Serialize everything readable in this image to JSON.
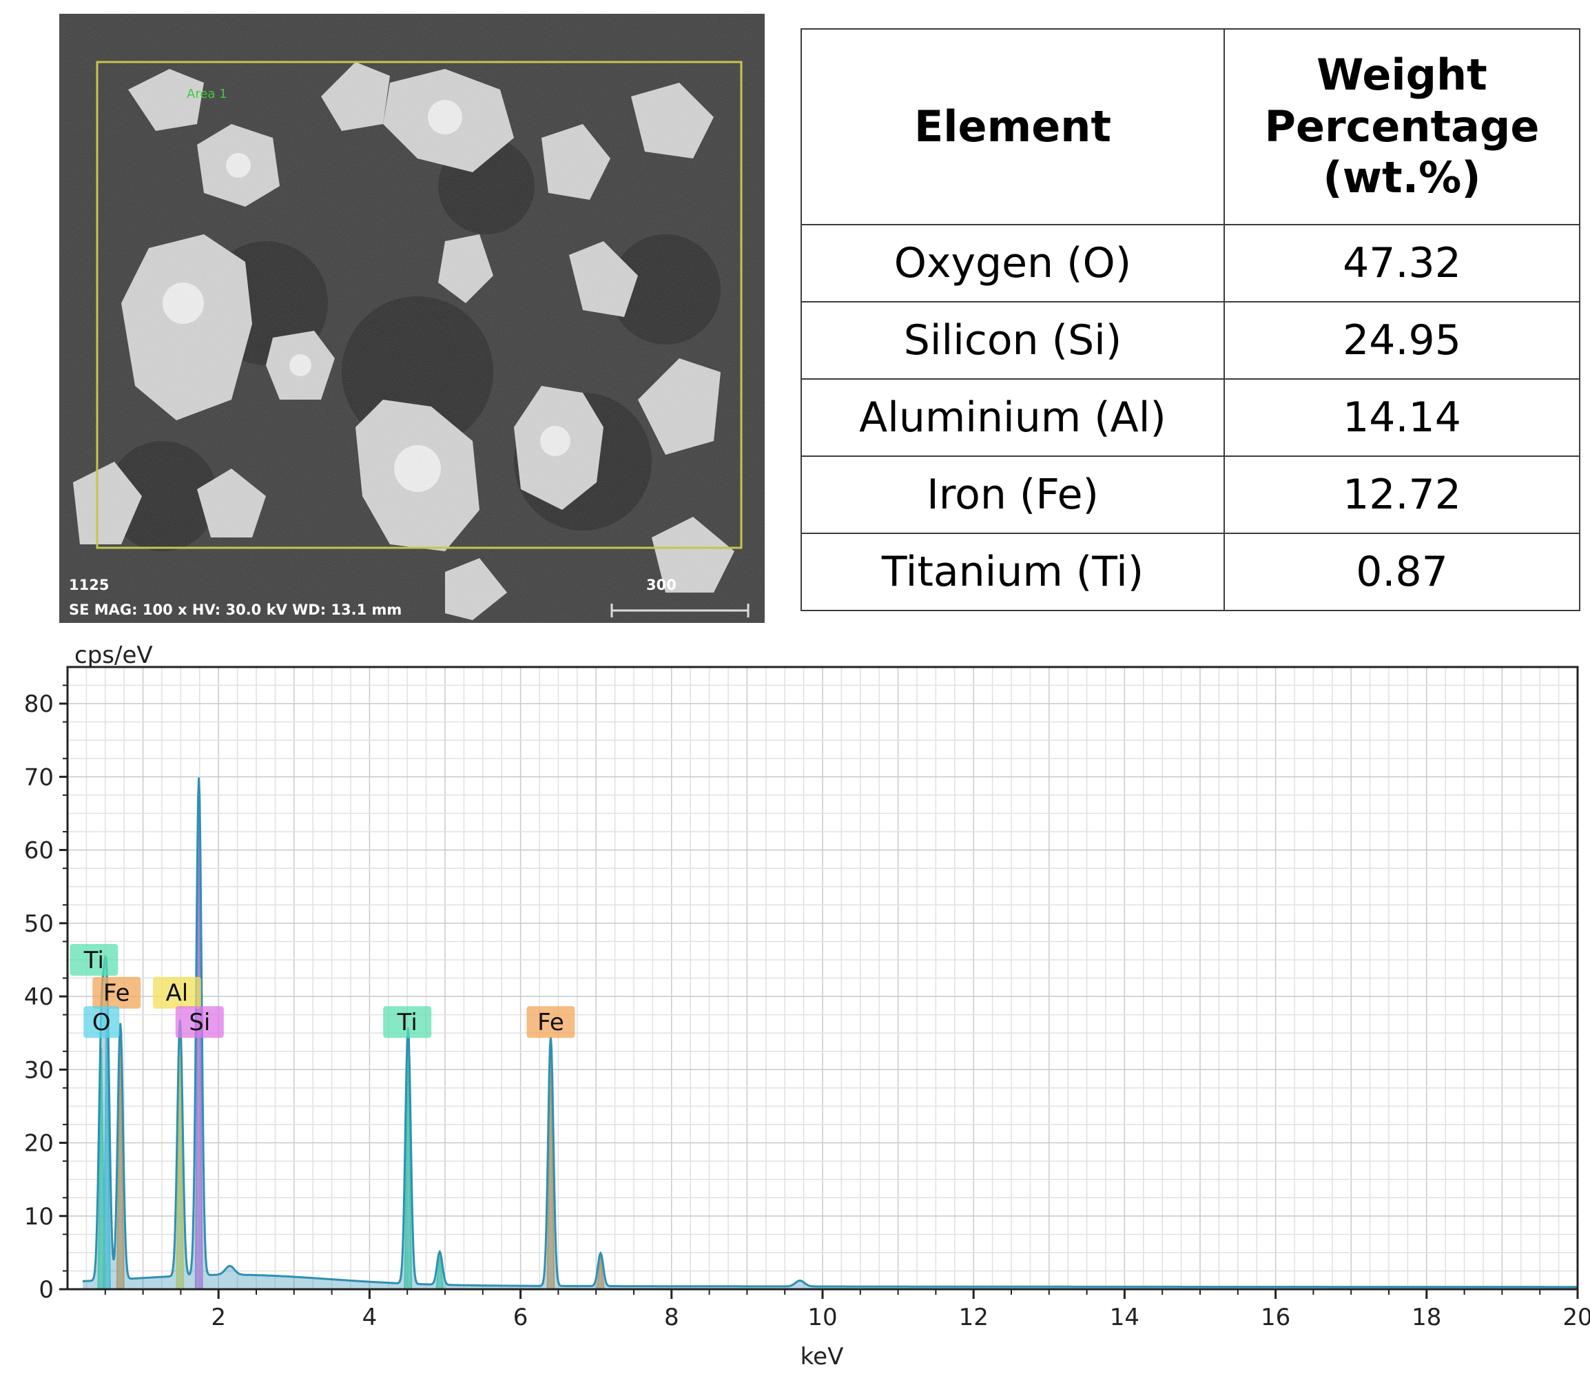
{
  "sem_image": {
    "sample_id": "1125",
    "info_line": "SE  MAG: 100 x  HV: 30.0 kV  WD: 13.1 mm",
    "scale_bar_label": "300",
    "roi_label": "Area 1"
  },
  "table": {
    "headers": [
      "Element",
      "Weight Percentage (wt.%)"
    ],
    "rows": [
      {
        "element": "Oxygen (O)",
        "value": "47.32"
      },
      {
        "element": "Silicon (Si)",
        "value": "24.95"
      },
      {
        "element": "Aluminium (Al)",
        "value": "14.14"
      },
      {
        "element": "Iron (Fe)",
        "value": "12.72"
      },
      {
        "element": "Titanium (Ti)",
        "value": "0.87"
      }
    ]
  },
  "chart_data": {
    "type": "line",
    "title": "",
    "xlabel": "keV",
    "ylabel": "cps/eV",
    "xlim": [
      0,
      20
    ],
    "ylim": [
      0,
      85
    ],
    "x_ticks": [
      2,
      4,
      6,
      8,
      10,
      12,
      14,
      16,
      18,
      20
    ],
    "y_ticks": [
      0,
      10,
      20,
      30,
      40,
      50,
      60,
      70,
      80
    ],
    "grid": true,
    "colors": {
      "spectrum": "#2f8fb3",
      "O": "#5fd3e8",
      "Ti": "#5ee0b0",
      "Fe": "#f2a65a",
      "Al": "#f2e05a",
      "Si": "#e07ae8"
    },
    "peaks": [
      {
        "element": "O",
        "x": 0.52,
        "y": 38
      },
      {
        "element": "Ti",
        "x": 0.45,
        "y": 33
      },
      {
        "element": "Fe",
        "x": 0.7,
        "y": 35
      },
      {
        "element": "Al",
        "x": 1.49,
        "y": 35
      },
      {
        "element": "Si",
        "x": 1.74,
        "y": 68
      },
      {
        "element": "Ti",
        "x": 4.51,
        "y": 35
      },
      {
        "element": "Ti",
        "x": 4.93,
        "y": 4.5
      },
      {
        "element": "Fe",
        "x": 6.4,
        "y": 34
      },
      {
        "element": "Fe",
        "x": 7.06,
        "y": 4.5
      }
    ],
    "element_labels": [
      {
        "text": "Ti",
        "element": "Ti",
        "x": 0.35,
        "y": 45
      },
      {
        "text": "Fe",
        "element": "Fe",
        "x": 0.65,
        "y": 40.5
      },
      {
        "text": "O",
        "element": "O",
        "x": 0.45,
        "y": 36.5
      },
      {
        "text": "Al",
        "element": "Al",
        "x": 1.45,
        "y": 40.5
      },
      {
        "text": "Si",
        "element": "Si",
        "x": 1.75,
        "y": 36.5
      },
      {
        "text": "Ti",
        "element": "Ti",
        "x": 4.5,
        "y": 36.5
      },
      {
        "text": "Fe",
        "element": "Fe",
        "x": 6.4,
        "y": 36.5
      }
    ]
  }
}
